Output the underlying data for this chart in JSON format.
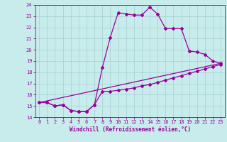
{
  "title": "",
  "xlabel": "Windchill (Refroidissement éolien,°C)",
  "ylabel": "",
  "bg_color": "#c8ecec",
  "grid_color": "#aad4d4",
  "line_color": "#990099",
  "xlim": [
    -0.5,
    23.5
  ],
  "ylim": [
    14,
    24
  ],
  "xticks": [
    0,
    1,
    2,
    3,
    4,
    5,
    6,
    7,
    8,
    9,
    10,
    11,
    12,
    13,
    14,
    15,
    16,
    17,
    18,
    19,
    20,
    21,
    22,
    23
  ],
  "yticks": [
    14,
    15,
    16,
    17,
    18,
    19,
    20,
    21,
    22,
    23,
    24
  ],
  "series1_x": [
    0,
    1,
    2,
    3,
    4,
    5,
    6,
    7,
    8,
    9,
    10,
    11,
    12,
    13,
    14,
    15,
    16,
    17,
    18,
    19,
    20,
    21,
    22,
    23
  ],
  "series1_y": [
    15.3,
    15.3,
    15.0,
    15.1,
    14.6,
    14.5,
    14.5,
    15.1,
    18.4,
    21.1,
    23.3,
    23.2,
    23.1,
    23.1,
    23.8,
    23.2,
    21.9,
    21.9,
    21.9,
    19.9,
    19.8,
    19.6,
    19.0,
    18.8
  ],
  "series2_x": [
    0,
    1,
    2,
    3,
    4,
    5,
    6,
    7,
    8,
    9,
    10,
    11,
    12,
    13,
    14,
    15,
    16,
    17,
    18,
    19,
    20,
    21,
    22,
    23
  ],
  "series2_y": [
    15.3,
    15.3,
    15.0,
    15.1,
    14.6,
    14.5,
    14.5,
    15.1,
    16.3,
    16.3,
    16.4,
    16.5,
    16.6,
    16.8,
    16.9,
    17.1,
    17.3,
    17.5,
    17.7,
    17.9,
    18.1,
    18.3,
    18.5,
    18.7
  ],
  "series3_x": [
    0,
    23
  ],
  "series3_y": [
    15.3,
    18.8
  ],
  "marker": "D",
  "marker_size": 2.0,
  "line_width": 0.9,
  "tick_fontsize": 5.0,
  "xlabel_fontsize": 5.5
}
